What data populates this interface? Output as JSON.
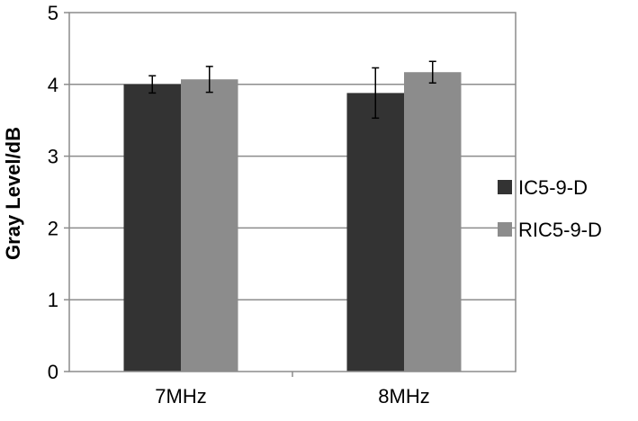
{
  "chart_data": {
    "type": "bar",
    "title": "",
    "xlabel": "",
    "ylabel": "Gray Level/dB",
    "ylim": [
      0,
      5
    ],
    "yticks": [
      "0",
      "1",
      "2",
      "3",
      "4",
      "5"
    ],
    "categories": [
      "7MHz",
      "8MHz"
    ],
    "grid": true,
    "legend": "right",
    "series": [
      {
        "name": "IC5-9-D",
        "color": "#333333",
        "values": [
          4.0,
          3.88
        ],
        "errors": [
          0.12,
          0.35
        ]
      },
      {
        "name": "RIC5-9-D",
        "color": "#8c8c8c",
        "values": [
          4.07,
          4.17
        ],
        "errors": [
          0.18,
          0.15
        ]
      }
    ]
  }
}
